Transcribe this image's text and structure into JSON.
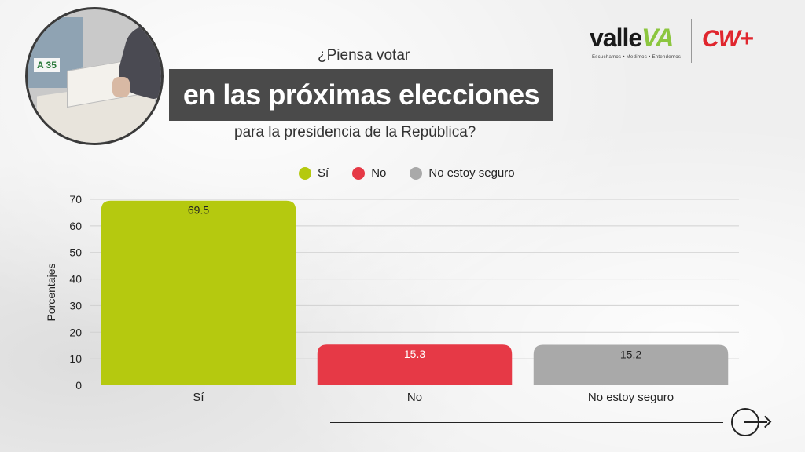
{
  "header": {
    "question_line1": "¿Piensa votar",
    "question_line2": "en las próximas elecciones",
    "question_line3": "para la presidencia de la República?"
  },
  "photo": {
    "booth_label": "A 35"
  },
  "logos": {
    "valle_prefix": "valle",
    "valle_suffix": "VA",
    "valle_tagline": "Escuchamos • Medimos • Entendemos",
    "cw": "CW+"
  },
  "colors": {
    "si": "#b5c90f",
    "no": "#e63946",
    "no_seguro": "#a9a9a9",
    "accent_band": "#4a4a4a"
  },
  "icons": {
    "next": "arrow-right-circle-icon"
  },
  "chart_data": {
    "type": "bar",
    "categories": [
      "Sí",
      "No",
      "No estoy seguro"
    ],
    "values": [
      69.5,
      15.3,
      15.2
    ],
    "data_labels": [
      "69.5",
      "15.3",
      "15.2"
    ],
    "legend": [
      "Sí",
      "No",
      "No estoy seguro"
    ],
    "legend_position": "top",
    "ylabel": "Porcentajes",
    "xlabel": "",
    "ylim": [
      0,
      70
    ],
    "yticks": [
      0,
      10,
      20,
      30,
      40,
      50,
      60,
      70
    ],
    "grid": true
  }
}
